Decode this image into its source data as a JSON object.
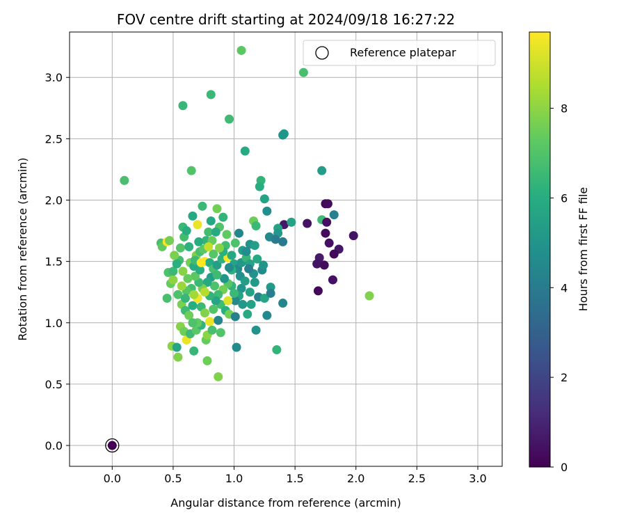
{
  "chart_data": {
    "type": "scatter",
    "title": "FOV centre drift starting at 2024/09/18 16:27:22",
    "xlabel": "Angular distance from reference (arcmin)",
    "ylabel": "Rotation from reference (arcmin)",
    "xlim": [
      -0.35,
      3.2
    ],
    "ylim": [
      -0.17,
      3.37
    ],
    "xticks": [
      "0.0",
      "0.5",
      "1.0",
      "1.5",
      "2.0",
      "2.5",
      "3.0"
    ],
    "yticks": [
      "0.0",
      "0.5",
      "1.0",
      "1.5",
      "2.0",
      "2.5",
      "3.0"
    ],
    "grid": true,
    "legend": {
      "placement": "top-right",
      "entries": [
        "Reference platepar"
      ]
    },
    "reference_point": {
      "x": 0.0,
      "y": 0.0,
      "hours": 0.0,
      "label": "Reference platepar"
    },
    "colorbar": {
      "label": "Hours from first FF file",
      "range": [
        0,
        9.7
      ],
      "ticks": [
        "0",
        "2",
        "4",
        "6",
        "8"
      ],
      "colormap": "viridis"
    },
    "series": [
      {
        "points": [
          [
            1.06,
            3.22,
            7.2
          ],
          [
            1.57,
            3.04,
            6.8
          ],
          [
            0.81,
            2.86,
            6.5
          ],
          [
            0.58,
            2.77,
            6.4
          ],
          [
            0.96,
            2.66,
            6.6
          ],
          [
            1.41,
            2.54,
            5.1
          ],
          [
            1.4,
            2.53,
            5.0
          ],
          [
            1.09,
            2.4,
            5.9
          ],
          [
            0.65,
            2.24,
            7.0
          ],
          [
            0.1,
            2.16,
            6.8
          ],
          [
            1.72,
            2.24,
            5.3
          ],
          [
            1.22,
            2.16,
            6.3
          ],
          [
            1.21,
            2.11,
            6.0
          ],
          [
            1.25,
            2.01,
            5.6
          ],
          [
            1.75,
            1.97,
            0.2
          ],
          [
            1.77,
            1.97,
            0.3
          ],
          [
            1.27,
            1.91,
            4.8
          ],
          [
            1.82,
            1.88,
            4.2
          ],
          [
            1.6,
            1.81,
            0.5
          ],
          [
            1.41,
            1.8,
            0.6
          ],
          [
            1.72,
            1.84,
            6.6
          ],
          [
            1.76,
            1.82,
            0.4
          ],
          [
            1.47,
            1.82,
            5.5
          ],
          [
            1.36,
            1.77,
            5.6
          ],
          [
            1.75,
            1.73,
            0.3
          ],
          [
            1.98,
            1.71,
            0.5
          ],
          [
            1.36,
            1.73,
            5.1
          ],
          [
            1.29,
            1.7,
            4.5
          ],
          [
            1.34,
            1.68,
            4.0
          ],
          [
            1.4,
            1.66,
            3.9
          ],
          [
            1.78,
            1.65,
            0.4
          ],
          [
            1.86,
            1.6,
            0.6
          ],
          [
            1.82,
            1.56,
            0.2
          ],
          [
            1.7,
            1.53,
            0.7
          ],
          [
            1.68,
            1.48,
            0.5
          ],
          [
            1.74,
            1.47,
            0.3
          ],
          [
            1.81,
            1.35,
            0.4
          ],
          [
            1.69,
            1.26,
            0.2
          ],
          [
            2.11,
            1.22,
            7.8
          ],
          [
            1.4,
            1.16,
            4.4
          ],
          [
            1.18,
            0.94,
            4.9
          ],
          [
            1.02,
            0.8,
            4.6
          ],
          [
            1.35,
            0.78,
            6.3
          ],
          [
            0.87,
            0.56,
            7.8
          ],
          [
            0.78,
            0.69,
            7.5
          ],
          [
            0.54,
            0.72,
            7.8
          ],
          [
            0.49,
            0.81,
            8.0
          ],
          [
            0.53,
            0.8,
            5.7
          ],
          [
            0.67,
            0.77,
            6.4
          ],
          [
            0.61,
            0.86,
            9.4
          ],
          [
            0.77,
            0.86,
            7.4
          ],
          [
            0.45,
            1.2,
            6.8
          ],
          [
            0.4,
            1.65,
            6.8
          ],
          [
            0.41,
            1.62,
            7.3
          ],
          [
            0.45,
            1.66,
            9.6
          ],
          [
            0.47,
            1.67,
            7.6
          ],
          [
            0.46,
            1.41,
            6.9
          ],
          [
            0.48,
            1.32,
            7.4
          ],
          [
            0.5,
            1.35,
            8.0
          ],
          [
            0.5,
            1.42,
            6.5
          ],
          [
            0.55,
            1.51,
            6.7
          ],
          [
            0.56,
            1.61,
            7.0
          ],
          [
            0.59,
            1.7,
            6.7
          ],
          [
            0.58,
            1.78,
            6.5
          ],
          [
            0.61,
            1.75,
            6.0
          ],
          [
            0.66,
            1.87,
            5.8
          ],
          [
            0.7,
            1.8,
            9.4
          ],
          [
            0.74,
            1.95,
            6.5
          ],
          [
            0.81,
            1.83,
            5.8
          ],
          [
            0.86,
            1.93,
            7.6
          ],
          [
            0.91,
            1.86,
            6.3
          ],
          [
            0.88,
            1.78,
            7.0
          ],
          [
            0.94,
            1.72,
            7.3
          ],
          [
            0.93,
            1.63,
            6.7
          ],
          [
            1.04,
            1.73,
            4.4
          ],
          [
            1.07,
            1.59,
            5.3
          ],
          [
            1.13,
            1.64,
            4.9
          ],
          [
            1.17,
            1.63,
            5.4
          ],
          [
            1.16,
            1.83,
            7.5
          ],
          [
            1.18,
            1.79,
            6.5
          ],
          [
            0.63,
            1.62,
            6.2
          ],
          [
            0.64,
            1.49,
            7.6
          ],
          [
            0.67,
            1.46,
            5.9
          ],
          [
            0.69,
            1.55,
            7.8
          ],
          [
            0.72,
            1.58,
            6.8
          ],
          [
            0.75,
            1.6,
            7.2
          ],
          [
            0.77,
            1.67,
            6.3
          ],
          [
            0.79,
            1.74,
            6.7
          ],
          [
            0.83,
            1.56,
            7.1
          ],
          [
            0.76,
            1.5,
            9.6
          ],
          [
            0.8,
            1.49,
            6.0
          ],
          [
            0.83,
            1.44,
            6.8
          ],
          [
            0.86,
            1.47,
            5.4
          ],
          [
            0.9,
            1.52,
            6.2
          ],
          [
            0.95,
            1.53,
            9.6
          ],
          [
            0.98,
            1.55,
            5.8
          ],
          [
            1.0,
            1.48,
            5.7
          ],
          [
            1.03,
            1.44,
            4.6
          ],
          [
            1.06,
            1.49,
            5.1
          ],
          [
            1.1,
            1.53,
            6.4
          ],
          [
            1.13,
            1.48,
            5.6
          ],
          [
            1.16,
            1.4,
            4.9
          ],
          [
            1.23,
            1.43,
            4.6
          ],
          [
            1.17,
            1.33,
            5.2
          ],
          [
            1.13,
            1.25,
            5.5
          ],
          [
            1.06,
            1.28,
            5.0
          ],
          [
            1.04,
            1.22,
            5.6
          ],
          [
            1.01,
            1.18,
            4.5
          ],
          [
            0.98,
            1.3,
            6.3
          ],
          [
            0.95,
            1.32,
            7.1
          ],
          [
            0.91,
            1.27,
            7.6
          ],
          [
            0.87,
            1.23,
            6.6
          ],
          [
            0.84,
            1.3,
            6.9
          ],
          [
            0.81,
            1.37,
            5.4
          ],
          [
            0.78,
            1.33,
            5.9
          ],
          [
            0.74,
            1.28,
            7.7
          ],
          [
            0.71,
            1.33,
            6.5
          ],
          [
            0.68,
            1.38,
            7.2
          ],
          [
            0.65,
            1.28,
            6.7
          ],
          [
            0.61,
            1.26,
            7.1
          ],
          [
            0.57,
            1.3,
            8.2
          ],
          [
            0.54,
            1.23,
            6.9
          ],
          [
            0.57,
            1.15,
            7.7
          ],
          [
            0.6,
            1.1,
            6.6
          ],
          [
            0.63,
            1.06,
            7.5
          ],
          [
            0.66,
            1.14,
            6.0
          ],
          [
            0.7,
            1.2,
            9.5
          ],
          [
            0.73,
            1.13,
            6.5
          ],
          [
            0.76,
            1.08,
            7.8
          ],
          [
            0.8,
            1.01,
            9.4
          ],
          [
            0.83,
            1.11,
            7.0
          ],
          [
            0.87,
            1.02,
            4.4
          ],
          [
            0.89,
            1.15,
            6.7
          ],
          [
            0.93,
            1.1,
            6.1
          ],
          [
            0.96,
            1.07,
            7.6
          ],
          [
            1.01,
            1.05,
            4.2
          ],
          [
            1.07,
            1.15,
            5.1
          ],
          [
            1.11,
            1.07,
            5.9
          ],
          [
            1.2,
            1.21,
            4.3
          ],
          [
            1.25,
            1.2,
            5.7
          ],
          [
            1.27,
            1.06,
            4.5
          ],
          [
            1.3,
            1.29,
            5.2
          ],
          [
            1.3,
            1.24,
            4.1
          ],
          [
            0.56,
            0.97,
            7.9
          ],
          [
            0.59,
            0.93,
            7.5
          ],
          [
            0.64,
            0.91,
            6.6
          ],
          [
            0.69,
            0.94,
            7.2
          ],
          [
            0.73,
            0.98,
            6.3
          ],
          [
            0.78,
            0.9,
            8.0
          ],
          [
            0.82,
            0.94,
            6.8
          ],
          [
            0.89,
            0.92,
            7.0
          ],
          [
            0.95,
            1.18,
            9.2
          ],
          [
            0.92,
            1.36,
            5.0
          ],
          [
            0.98,
            1.43,
            6.1
          ],
          [
            1.05,
            1.38,
            4.8
          ],
          [
            1.09,
            1.34,
            5.3
          ],
          [
            1.0,
            1.24,
            6.5
          ],
          [
            0.85,
            1.18,
            5.7
          ],
          [
            0.8,
            1.22,
            6.3
          ],
          [
            0.76,
            1.25,
            8.6
          ],
          [
            0.72,
            1.43,
            6.0
          ],
          [
            0.68,
            1.51,
            6.6
          ],
          [
            0.73,
            1.49,
            9.8
          ],
          [
            0.62,
            1.36,
            7.4
          ],
          [
            0.58,
            1.42,
            7.9
          ],
          [
            0.53,
            1.48,
            6.1
          ],
          [
            0.51,
            1.55,
            7.7
          ],
          [
            0.6,
            1.2,
            6.4
          ],
          [
            0.67,
            1.23,
            8.3
          ],
          [
            0.7,
            1.0,
            7.3
          ],
          [
            0.66,
            1.0,
            6.9
          ],
          [
            1.12,
            1.44,
            4.2
          ],
          [
            1.19,
            1.52,
            5.8
          ],
          [
            1.14,
            1.15,
            5.5
          ],
          [
            1.24,
            1.47,
            5.0
          ],
          [
            0.86,
            1.39,
            6.6
          ],
          [
            0.71,
            1.66,
            6.0
          ],
          [
            0.82,
            1.67,
            7.4
          ],
          [
            0.79,
            1.62,
            8.8
          ],
          [
            0.85,
            1.74,
            5.9
          ],
          [
            1.1,
            1.58,
            4.7
          ],
          [
            1.01,
            1.65,
            6.9
          ],
          [
            0.96,
            1.45,
            4.6
          ],
          [
            0.91,
            1.58,
            6.1
          ],
          [
            0.88,
            1.61,
            7.9
          ]
        ]
      }
    ]
  }
}
